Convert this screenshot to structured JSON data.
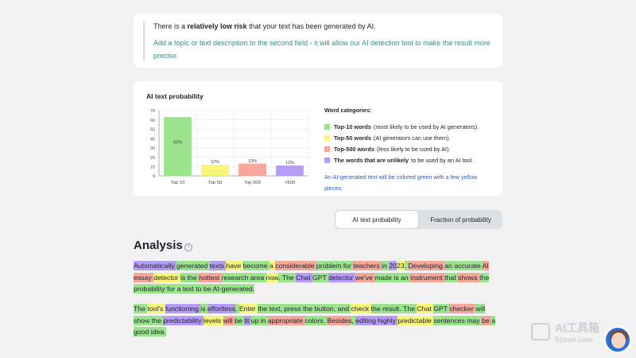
{
  "risk": {
    "prefix": "There is a ",
    "emphasis": "relatively low risk",
    "suffix": " that your text has been generated by AI.",
    "hint": "Add a topic or text description to the second field - it will allow our AI detection tool to make the result more precise."
  },
  "chart_card": {
    "title": "AI text probability",
    "legend_title": "Word categories:",
    "legend": [
      {
        "label": "Top-10 words",
        "desc": "(most likely to be used by AI generators).",
        "color": "#9be48d"
      },
      {
        "label": "Top-50 words",
        "desc": "(AI generators can use them).",
        "color": "#f7f57a"
      },
      {
        "label": "Top-500 words",
        "desc": "(less likely to be used by AI).",
        "color": "#f4a79a"
      },
      {
        "label": "The words that are unlikely",
        "desc": "to be used by an AI tool.",
        "color": "#b69cf5"
      }
    ],
    "note": "An AI-generated text will be colored green with a few yellow pieces."
  },
  "chart_data": {
    "type": "bar",
    "categories": [
      "Top 10",
      "Top 50",
      "Top 500",
      ">500"
    ],
    "values": [
      63,
      12,
      13,
      11
    ],
    "data_labels": [
      "63%",
      "12%",
      "13%",
      "11%"
    ],
    "colors": [
      "#9be48d",
      "#f7f57a",
      "#f4a79a",
      "#b69cf5"
    ],
    "ylim": [
      0,
      70
    ],
    "yticks": [
      0,
      10,
      20,
      30,
      40,
      50,
      60,
      70
    ],
    "grid": true
  },
  "toggle": {
    "ai_label": "AI text probability",
    "fraction_label": "Fraction of probability"
  },
  "analysis": {
    "title": "Analysis",
    "info_glyph": "i",
    "paragraphs": [
      [
        [
          "Automatically ",
          "p"
        ],
        [
          "generated ",
          "g"
        ],
        [
          "texts ",
          "p"
        ],
        [
          "have ",
          "y"
        ],
        [
          "become ",
          "g"
        ],
        [
          "a ",
          "y"
        ],
        [
          "considerable ",
          "r"
        ],
        [
          "problem ",
          "g"
        ],
        [
          "for ",
          "g"
        ],
        [
          "teachers ",
          "r"
        ],
        [
          "in ",
          "g"
        ],
        [
          "20",
          "p"
        ],
        [
          "23",
          "y"
        ],
        [
          ". ",
          "g"
        ],
        [
          "Developing ",
          "r"
        ],
        [
          "an ",
          "g"
        ],
        [
          "accurate ",
          "g"
        ],
        [
          "AI ",
          "r"
        ],
        [
          "essay ",
          "r"
        ],
        [
          "detector ",
          "y"
        ],
        [
          "is ",
          "g"
        ],
        [
          "the ",
          "g"
        ],
        [
          "hottest ",
          "r"
        ],
        [
          "research ",
          "g"
        ],
        [
          "area ",
          "g"
        ],
        [
          "now",
          "y"
        ],
        [
          ". ",
          "g"
        ],
        [
          "The ",
          "g"
        ],
        [
          "Chat ",
          "p"
        ],
        [
          "GPT ",
          "g"
        ],
        [
          "detector ",
          "p"
        ],
        [
          "we've ",
          "r"
        ],
        [
          "made ",
          "g"
        ],
        [
          "is ",
          "g"
        ],
        [
          "an ",
          "g"
        ],
        [
          "instrument ",
          "r"
        ],
        [
          "that ",
          "g"
        ],
        [
          "shows ",
          "r"
        ],
        [
          "the ",
          "g"
        ],
        [
          "probability ",
          "g"
        ],
        [
          "for ",
          "g"
        ],
        [
          "a ",
          "g"
        ],
        [
          "text ",
          "g"
        ],
        [
          "to ",
          "g"
        ],
        [
          "be ",
          "g"
        ],
        [
          "AI-generated.",
          "g"
        ]
      ],
      [
        [
          "The ",
          "g"
        ],
        [
          "tool's ",
          "y"
        ],
        [
          "functioning ",
          "p"
        ],
        [
          "is ",
          "g"
        ],
        [
          "effortless",
          "p"
        ],
        [
          ". ",
          "g"
        ],
        [
          "Enter ",
          "y"
        ],
        [
          "the ",
          "g"
        ],
        [
          "text",
          "g"
        ],
        [
          ", ",
          "g"
        ],
        [
          "press ",
          "g"
        ],
        [
          "the ",
          "g"
        ],
        [
          "button",
          "g"
        ],
        [
          ", ",
          "g"
        ],
        [
          "and ",
          "g"
        ],
        [
          "check ",
          "y"
        ],
        [
          "the ",
          "g"
        ],
        [
          "result",
          "g"
        ],
        [
          ". ",
          "g"
        ],
        [
          "The ",
          "g"
        ],
        [
          "Chat ",
          "y"
        ],
        [
          "GPT ",
          "g"
        ],
        [
          "checker ",
          "r"
        ],
        [
          "will ",
          "g"
        ],
        [
          "show ",
          "g"
        ],
        [
          "the ",
          "g"
        ],
        [
          "predictability ",
          "p"
        ],
        [
          "levels ",
          "y"
        ],
        [
          "will ",
          "r"
        ],
        [
          "be ",
          "g"
        ],
        [
          "lit ",
          "p"
        ],
        [
          "up ",
          "g"
        ],
        [
          "in ",
          "g"
        ],
        [
          "appropriate ",
          "r"
        ],
        [
          "colors",
          "g"
        ],
        [
          ". ",
          "g"
        ],
        [
          "Besides",
          "r"
        ],
        [
          ", ",
          "g"
        ],
        [
          "editing ",
          "p"
        ],
        [
          "highly ",
          "p"
        ],
        [
          "predictable ",
          "y"
        ],
        [
          "sentences ",
          "g"
        ],
        [
          "may ",
          "g"
        ],
        [
          "be ",
          "r"
        ],
        [
          "a ",
          "g"
        ],
        [
          "good ",
          "g"
        ],
        [
          "idea",
          "g"
        ],
        [
          ".",
          "g"
        ]
      ]
    ]
  },
  "watermark": {
    "text": "AI工具箱",
    "sub": "51tool.com"
  }
}
